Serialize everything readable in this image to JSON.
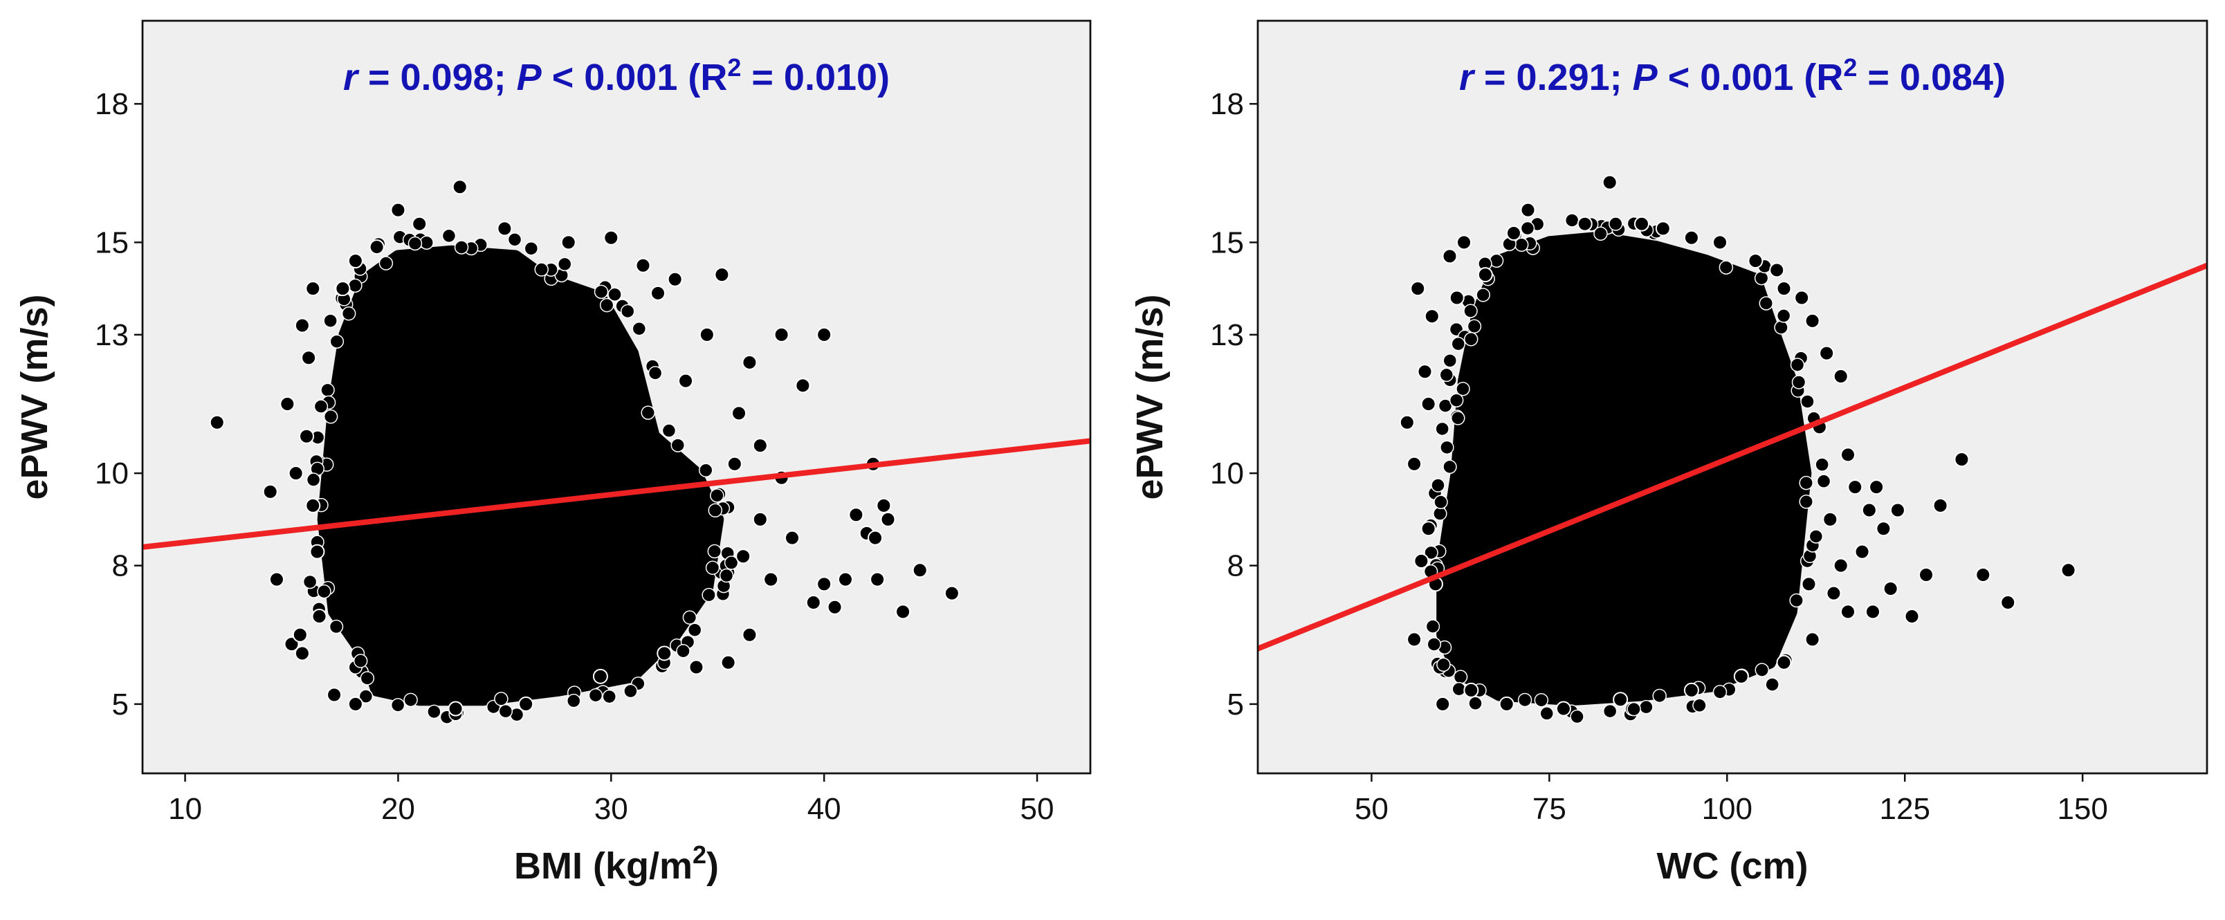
{
  "colors": {
    "plot_bg": "#efefef",
    "marker": "#000000",
    "fit_line": "#ee2222",
    "annotation": "#1414b4",
    "axis": "#111111"
  },
  "chart_data": [
    {
      "type": "scatter",
      "xlabel": "BMI (kg/m",
      "xlabel_sup": "2",
      "xlabel_tail": ")",
      "ylabel": "ePWV (m/s)",
      "xlim": [
        8,
        52.5
      ],
      "ylim": [
        3.5,
        19.8
      ],
      "xticks": [
        10,
        20,
        30,
        40,
        50
      ],
      "yticks": [
        5,
        8,
        10,
        13,
        15,
        18
      ],
      "annotation": {
        "r_symbol": "r",
        "r_text": " = 0.098; ",
        "p_symbol": "P",
        "p_text": " < 0.001 (R",
        "r2_sup": "2",
        "r2_text": " = 0.010)"
      },
      "fit_line": {
        "x": [
          8,
          52.5
        ],
        "y": [
          8.4,
          10.7
        ]
      },
      "dense_cloud": [
        [
          18.5,
          6.0
        ],
        [
          17.0,
          7.0
        ],
        [
          16.5,
          9.0
        ],
        [
          17.0,
          11.5
        ],
        [
          17.5,
          13.0
        ],
        [
          18.5,
          14.2
        ],
        [
          20.0,
          14.7
        ],
        [
          22.5,
          14.8
        ],
        [
          25.5,
          14.7
        ],
        [
          27.0,
          14.2
        ],
        [
          29.5,
          13.8
        ],
        [
          31.0,
          12.6
        ],
        [
          32.0,
          10.8
        ],
        [
          34.0,
          10.0
        ],
        [
          35.0,
          9.0
        ],
        [
          34.5,
          7.5
        ],
        [
          33.0,
          6.5
        ],
        [
          31.0,
          5.6
        ],
        [
          27.5,
          5.3
        ],
        [
          24.0,
          5.1
        ],
        [
          21.0,
          5.1
        ],
        [
          19.0,
          5.3
        ]
      ],
      "points": [
        [
          11.5,
          11.1
        ],
        [
          14.0,
          9.6
        ],
        [
          14.3,
          7.7
        ],
        [
          14.8,
          11.5
        ],
        [
          15.2,
          10.0
        ],
        [
          15.0,
          6.3
        ],
        [
          15.5,
          13.2
        ],
        [
          15.8,
          12.5
        ],
        [
          16.0,
          14.0
        ],
        [
          16.2,
          8.3
        ],
        [
          16.3,
          6.9
        ],
        [
          16.0,
          9.3
        ],
        [
          15.7,
          10.8
        ],
        [
          17.4,
          14.0
        ],
        [
          22.9,
          16.2
        ],
        [
          20.0,
          15.7
        ],
        [
          30.0,
          15.1
        ],
        [
          35.2,
          14.3
        ],
        [
          34.5,
          13.0
        ],
        [
          33.5,
          12.0
        ],
        [
          36.0,
          11.3
        ],
        [
          37.0,
          10.6
        ],
        [
          38.0,
          9.9
        ],
        [
          38.5,
          8.6
        ],
        [
          37.5,
          7.7
        ],
        [
          36.5,
          6.5
        ],
        [
          38.0,
          13.0
        ],
        [
          40.0,
          13.0
        ],
        [
          39.0,
          11.9
        ],
        [
          39.5,
          7.2
        ],
        [
          40.0,
          7.6
        ],
        [
          40.5,
          7.1
        ],
        [
          41.0,
          7.7
        ],
        [
          41.5,
          9.1
        ],
        [
          42.0,
          8.7
        ],
        [
          42.3,
          10.2
        ],
        [
          42.4,
          8.6
        ],
        [
          42.5,
          7.7
        ],
        [
          42.8,
          9.3
        ],
        [
          43.0,
          9.0
        ],
        [
          43.7,
          7.0
        ],
        [
          44.5,
          7.9
        ],
        [
          46.0,
          7.4
        ],
        [
          37.0,
          9.0
        ],
        [
          36.2,
          8.2
        ],
        [
          35.5,
          5.9
        ],
        [
          34.0,
          5.8
        ],
        [
          32.5,
          6.1
        ],
        [
          29.5,
          5.6
        ],
        [
          26.0,
          5.0
        ],
        [
          22.7,
          4.9
        ],
        [
          18.0,
          5.0
        ],
        [
          17.0,
          5.2
        ],
        [
          15.5,
          6.1
        ],
        [
          15.4,
          6.5
        ],
        [
          33.0,
          14.2
        ],
        [
          31.5,
          14.5
        ],
        [
          32.2,
          13.9
        ],
        [
          28.0,
          15.0
        ],
        [
          25.0,
          15.3
        ],
        [
          21.0,
          15.4
        ],
        [
          19.0,
          14.9
        ],
        [
          18.0,
          14.6
        ],
        [
          36.5,
          12.4
        ],
        [
          35.8,
          10.2
        ]
      ]
    },
    {
      "type": "scatter",
      "xlabel": "WC (cm)",
      "ylabel": "ePWV (m/s)",
      "xlim": [
        34,
        167.5
      ],
      "ylim": [
        3.5,
        19.8
      ],
      "xticks": [
        50,
        75,
        100,
        125,
        150
      ],
      "yticks": [
        5,
        8,
        10,
        13,
        15,
        18
      ],
      "annotation": {
        "r_symbol": "r",
        "r_text": " = 0.291; ",
        "p_symbol": "P",
        "p_text": " < 0.001 (R",
        "r2_sup": "2",
        "r2_text": " = 0.084)"
      },
      "fit_line": {
        "x": [
          34,
          167.5
        ],
        "y": [
          6.2,
          14.5
        ]
      },
      "dense_cloud": [
        [
          62.0,
          5.7
        ],
        [
          60.0,
          6.5
        ],
        [
          60.0,
          8.0
        ],
        [
          62.0,
          10.0
        ],
        [
          63.0,
          12.0
        ],
        [
          65.0,
          13.5
        ],
        [
          68.0,
          14.6
        ],
        [
          75.0,
          15.0
        ],
        [
          82.0,
          15.1
        ],
        [
          90.0,
          14.9
        ],
        [
          97.0,
          14.6
        ],
        [
          104.0,
          14.2
        ],
        [
          106.0,
          13.3
        ],
        [
          109.0,
          12.0
        ],
        [
          111.0,
          10.0
        ],
        [
          110.0,
          8.5
        ],
        [
          109.0,
          7.0
        ],
        [
          106.0,
          5.9
        ],
        [
          98.0,
          5.4
        ],
        [
          88.0,
          5.2
        ],
        [
          78.0,
          5.1
        ],
        [
          68.0,
          5.2
        ]
      ],
      "points": [
        [
          55.0,
          11.1
        ],
        [
          56.0,
          10.2
        ],
        [
          57.0,
          8.1
        ],
        [
          56.0,
          6.4
        ],
        [
          56.5,
          14.0
        ],
        [
          57.5,
          12.2
        ],
        [
          58.0,
          11.5
        ],
        [
          58.5,
          13.4
        ],
        [
          59.0,
          7.6
        ],
        [
          58.0,
          8.8
        ],
        [
          60.0,
          5.0
        ],
        [
          61.0,
          14.7
        ],
        [
          62.0,
          13.8
        ],
        [
          63.0,
          15.0
        ],
        [
          72.0,
          15.7
        ],
        [
          83.5,
          16.3
        ],
        [
          88.0,
          15.4
        ],
        [
          91.0,
          15.3
        ],
        [
          99.0,
          15.0
        ],
        [
          104.0,
          14.6
        ],
        [
          108.0,
          14.0
        ],
        [
          112.0,
          13.3
        ],
        [
          114.0,
          12.6
        ],
        [
          116.0,
          12.1
        ],
        [
          113.0,
          11.0
        ],
        [
          117.0,
          10.4
        ],
        [
          118.0,
          9.7
        ],
        [
          120.0,
          9.2
        ],
        [
          122.0,
          8.8
        ],
        [
          124.0,
          9.2
        ],
        [
          119.0,
          8.3
        ],
        [
          115.0,
          7.4
        ],
        [
          117.0,
          7.0
        ],
        [
          120.5,
          7.0
        ],
        [
          123.0,
          7.5
        ],
        [
          126.0,
          6.9
        ],
        [
          128.0,
          7.8
        ],
        [
          130.0,
          9.3
        ],
        [
          133.0,
          10.3
        ],
        [
          136.0,
          7.8
        ],
        [
          139.5,
          7.2
        ],
        [
          148.0,
          7.9
        ],
        [
          112.0,
          6.4
        ],
        [
          108.0,
          5.9
        ],
        [
          102.0,
          5.6
        ],
        [
          95.0,
          5.3
        ],
        [
          85.0,
          5.1
        ],
        [
          77.0,
          4.9
        ],
        [
          69.0,
          5.0
        ],
        [
          64.0,
          5.3
        ],
        [
          110.5,
          13.8
        ],
        [
          107.0,
          14.4
        ],
        [
          66.0,
          14.3
        ],
        [
          70.0,
          15.2
        ],
        [
          80.0,
          15.4
        ],
        [
          95.0,
          15.1
        ],
        [
          114.5,
          9.0
        ],
        [
          116.0,
          8.0
        ],
        [
          111.5,
          7.6
        ],
        [
          121.0,
          9.7
        ]
      ]
    }
  ]
}
